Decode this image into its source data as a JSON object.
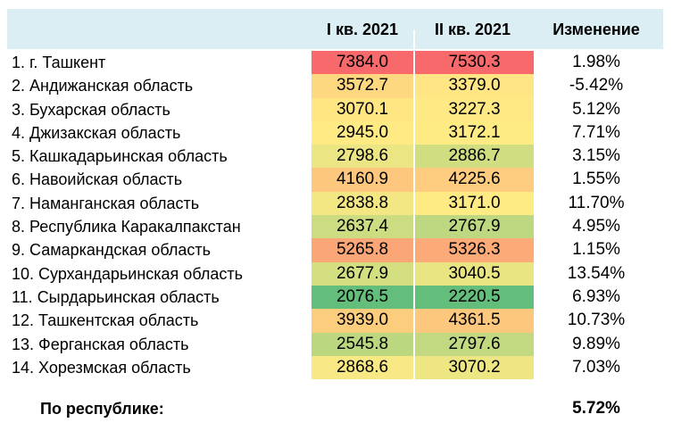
{
  "colors": {
    "header_bg": "#DAEEF3",
    "text": "#000000",
    "scale_min_green": "#63BE7B",
    "scale_mid_yellow": "#FFEB84",
    "scale_max_red": "#F8696B"
  },
  "header": {
    "q1": "I кв. 2021",
    "q2": "II кв. 2021",
    "change": "Изменение"
  },
  "rows": [
    {
      "name": "1. г. Ташкент",
      "q1": "7384.0",
      "q2": "7530.3",
      "change": "1.98%",
      "q1_color": "#F8696B",
      "q2_color": "#F8696B"
    },
    {
      "name": "2. Андижанская область",
      "q1": "3572.7",
      "q2": "3379.0",
      "change": "-5.42%",
      "q1_color": "#FED880",
      "q2_color": "#FFE583"
    },
    {
      "name": "3. Бухарская область",
      "q1": "3070.1",
      "q2": "3227.3",
      "change": "5.12%",
      "q1_color": "#FFE683",
      "q2_color": "#FFE984"
    },
    {
      "name": "4. Джизакская область",
      "q1": "2945.0",
      "q2": "3172.1",
      "change": "7.71%",
      "q1_color": "#FFEA84",
      "q2_color": "#FFEB84"
    },
    {
      "name": "5. Кашкадарьинская область",
      "q1": "2798.6",
      "q2": "2886.7",
      "change": "3.15%",
      "q1_color": "#EBE583",
      "q2_color": "#D0DE81"
    },
    {
      "name": "6. Навоийская область",
      "q1": "4160.9",
      "q2": "4225.6",
      "change": "1.55%",
      "q1_color": "#FDC77D",
      "q2_color": "#FDCC7E"
    },
    {
      "name": "7. Наманганская область",
      "q1": "2838.8",
      "q2": "3171.0",
      "change": "11.70%",
      "q1_color": "#F2E783",
      "q2_color": "#FFEB84"
    },
    {
      "name": "8. Республика Каракалпакстан",
      "q1": "2637.4",
      "q2": "2767.9",
      "change": "4.95%",
      "q1_color": "#CCDC81",
      "q2_color": "#BDD880"
    },
    {
      "name": "9. Самаркандская область",
      "q1": "5265.8",
      "q2": "5326.3",
      "change": "1.15%",
      "q1_color": "#FBA677",
      "q2_color": "#FCAB78"
    },
    {
      "name": "10. Сурхандарьинская область",
      "q1": "2677.9",
      "q2": "3040.5",
      "change": "13.54%",
      "q1_color": "#D4DF82",
      "q2_color": "#EAE583"
    },
    {
      "name": "11. Сырдарьинская область",
      "q1": "2076.5",
      "q2": "2220.5",
      "change": "6.93%",
      "q1_color": "#63BE7B",
      "q2_color": "#63BE7B"
    },
    {
      "name": "12. Ташкентская область",
      "q1": "3939.0",
      "q2": "4361.5",
      "change": "10.73%",
      "q1_color": "#FDCD7E",
      "q2_color": "#FDC87D"
    },
    {
      "name": "13. Ферганская область",
      "q1": "2545.8",
      "q2": "2797.6",
      "change": "9.89%",
      "q1_color": "#BBD780",
      "q2_color": "#C2D981"
    },
    {
      "name": "14. Хорезмская область",
      "q1": "2868.6",
      "q2": "3070.2",
      "change": "7.03%",
      "q1_color": "#F8E984",
      "q2_color": "#EEE683"
    }
  ],
  "footer": {
    "label": "По республике:",
    "change": "5.72%"
  }
}
